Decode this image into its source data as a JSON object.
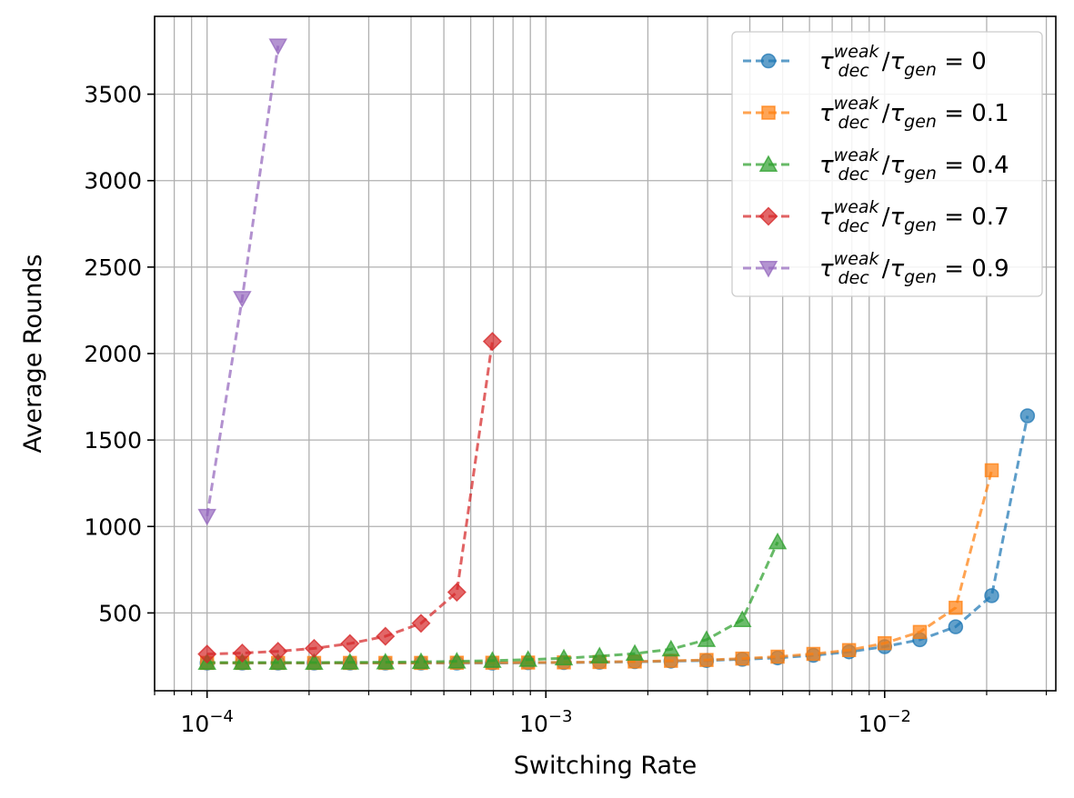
{
  "chart_data": {
    "type": "line",
    "title": "",
    "xlabel": "Switching Rate",
    "ylabel": "Average Rounds",
    "xscale": "log",
    "xlim": [
      7e-05,
      0.032
    ],
    "ylim": [
      50,
      3950
    ],
    "grid": true,
    "legend_position": "top-right",
    "x_ticks": [
      {
        "value": 0.0001,
        "base": "10",
        "exp": "−4"
      },
      {
        "value": 0.001,
        "base": "10",
        "exp": "−3"
      },
      {
        "value": 0.01,
        "base": "10",
        "exp": "−2"
      }
    ],
    "y_ticks": [
      {
        "value": 500,
        "label": "500"
      },
      {
        "value": 1000,
        "label": "1000"
      },
      {
        "value": 1500,
        "label": "1500"
      },
      {
        "value": 2000,
        "label": "2000"
      },
      {
        "value": 2500,
        "label": "2500"
      },
      {
        "value": 3000,
        "label": "3000"
      },
      {
        "value": 3500,
        "label": "3500"
      }
    ],
    "series": [
      {
        "name": "τ_dec^weak/τ_gen = 0",
        "label": {
          "tau": "τ",
          "sup": "weak",
          "sub": "dec",
          "slash": "/",
          "tau2": "τ",
          "sub2": "gen",
          "eq": " = 0"
        },
        "color": "#1f77b4",
        "marker": "circle",
        "x": [
          0.0001,
          0.000127,
          0.000162,
          0.000207,
          0.000264,
          0.000336,
          0.000428,
          0.000546,
          0.000695,
          0.000886,
          0.00113,
          0.00144,
          0.00183,
          0.00234,
          0.00298,
          0.0038,
          0.00483,
          0.00616,
          0.00785,
          0.01,
          0.0127,
          0.0162,
          0.0207,
          0.0264
        ],
        "values": [
          210,
          210,
          210,
          210,
          210,
          210,
          210,
          210,
          210,
          212,
          213,
          215,
          218,
          221,
          225,
          232,
          240,
          255,
          275,
          305,
          345,
          420,
          600,
          1640
        ]
      },
      {
        "name": "τ_dec^weak/τ_gen = 0.1",
        "label": {
          "tau": "τ",
          "sup": "weak",
          "sub": "dec",
          "slash": "/",
          "tau2": "τ",
          "sub2": "gen",
          "eq": " = 0.1"
        },
        "color": "#ff7f0e",
        "marker": "square",
        "x": [
          0.0001,
          0.000127,
          0.000162,
          0.000207,
          0.000264,
          0.000336,
          0.000428,
          0.000546,
          0.000695,
          0.000886,
          0.00113,
          0.00144,
          0.00183,
          0.00234,
          0.00298,
          0.0038,
          0.00483,
          0.00616,
          0.00785,
          0.01,
          0.0127,
          0.0162,
          0.0207
        ],
        "values": [
          211,
          211,
          211,
          211,
          211,
          211,
          211,
          212,
          212,
          213,
          214,
          216,
          219,
          223,
          228,
          236,
          247,
          263,
          285,
          325,
          390,
          530,
          1325
        ]
      },
      {
        "name": "τ_dec^weak/τ_gen = 0.4",
        "label": {
          "tau": "τ",
          "sup": "weak",
          "sub": "dec",
          "slash": "/",
          "tau2": "τ",
          "sub2": "gen",
          "eq": " = 0.4"
        },
        "color": "#2ca02c",
        "marker": "triangle-up",
        "x": [
          0.0001,
          0.000127,
          0.000162,
          0.000207,
          0.000264,
          0.000336,
          0.000428,
          0.000546,
          0.000695,
          0.000886,
          0.00113,
          0.00144,
          0.00183,
          0.00234,
          0.00298,
          0.0038,
          0.00483
        ],
        "values": [
          213,
          213,
          213,
          213,
          214,
          215,
          217,
          220,
          224,
          230,
          238,
          250,
          265,
          290,
          345,
          460,
          910
        ]
      },
      {
        "name": "τ_dec^weak/τ_gen = 0.7",
        "label": {
          "tau": "τ",
          "sup": "weak",
          "sub": "dec",
          "slash": "/",
          "tau2": "τ",
          "sub2": "gen",
          "eq": " = 0.7"
        },
        "color": "#d62728",
        "marker": "diamond",
        "x": [
          0.0001,
          0.000127,
          0.000162,
          0.000207,
          0.000264,
          0.000336,
          0.000428,
          0.000546,
          0.000695
        ],
        "values": [
          262,
          268,
          278,
          295,
          323,
          365,
          440,
          620,
          2070
        ]
      },
      {
        "name": "τ_dec^weak/τ_gen = 0.9",
        "label": {
          "tau": "τ",
          "sup": "weak",
          "sub": "dec",
          "slash": "/",
          "tau2": "τ",
          "sub2": "gen",
          "eq": " = 0.9"
        },
        "color": "#9467bd",
        "marker": "triangle-down",
        "x": [
          0.0001,
          0.000127,
          0.000162
        ],
        "values": [
          1060,
          2320,
          3780
        ]
      }
    ]
  }
}
